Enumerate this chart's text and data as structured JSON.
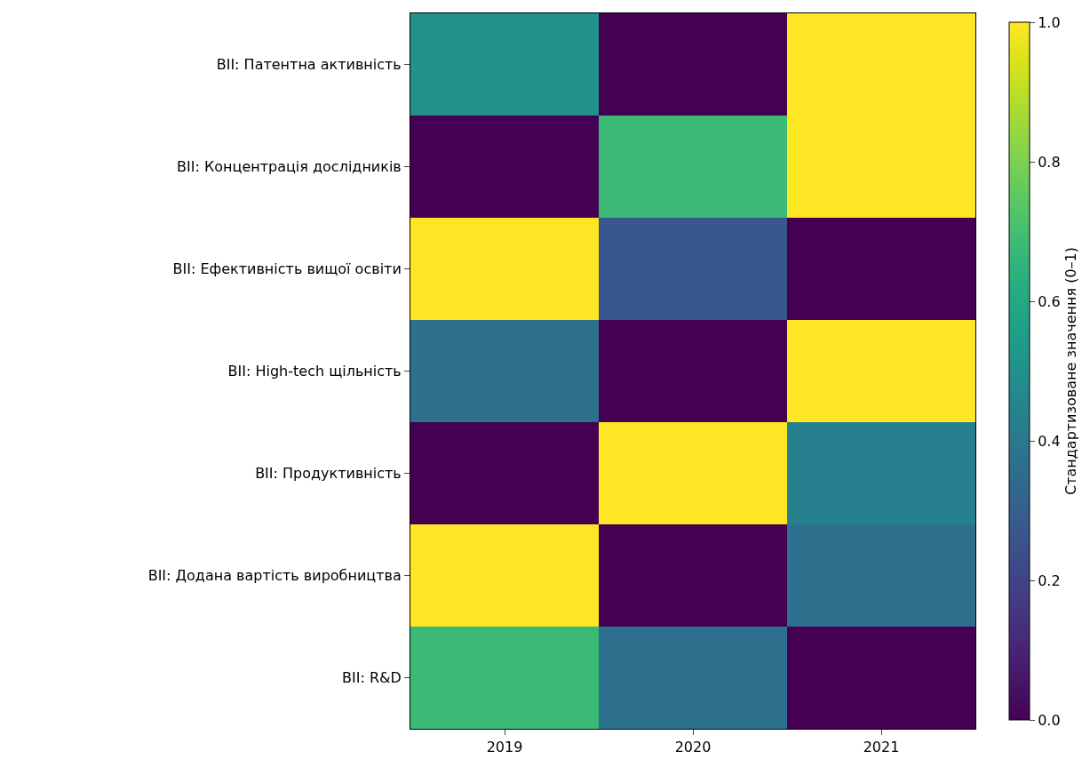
{
  "chart_data": {
    "type": "heatmap",
    "categories": [
      "2019",
      "2020",
      "2021"
    ],
    "y_categories": [
      "ВІІ: Патентна активність",
      "ВІІ: Концентрація дослідників",
      "ВІІ: Ефективність вищої освіти",
      "ВІІ: High-tech щільність",
      "ВІІ: Продуктивність",
      "ВІІ: Додана вартість виробництва",
      "ВІІ: R&D"
    ],
    "cells": [
      [
        0.5,
        0,
        1
      ],
      [
        0,
        0.68,
        1
      ],
      [
        1,
        0.27,
        0
      ],
      [
        0.37,
        0,
        1
      ],
      [
        0,
        1,
        0.43
      ],
      [
        1,
        0,
        0.37
      ],
      [
        0.68,
        0.37,
        0
      ]
    ],
    "clabel": "Стандартизоване значення (0–1)",
    "clim": [
      0,
      1
    ],
    "cticks": [
      {
        "value": 0,
        "label": "0.0"
      },
      {
        "value": 0.2,
        "label": "0.2"
      },
      {
        "value": 0.4,
        "label": "0.4"
      },
      {
        "value": 0.6,
        "label": "0.6"
      },
      {
        "value": 0.8,
        "label": "0.8"
      },
      {
        "value": 1,
        "label": "1.0"
      }
    ]
  }
}
